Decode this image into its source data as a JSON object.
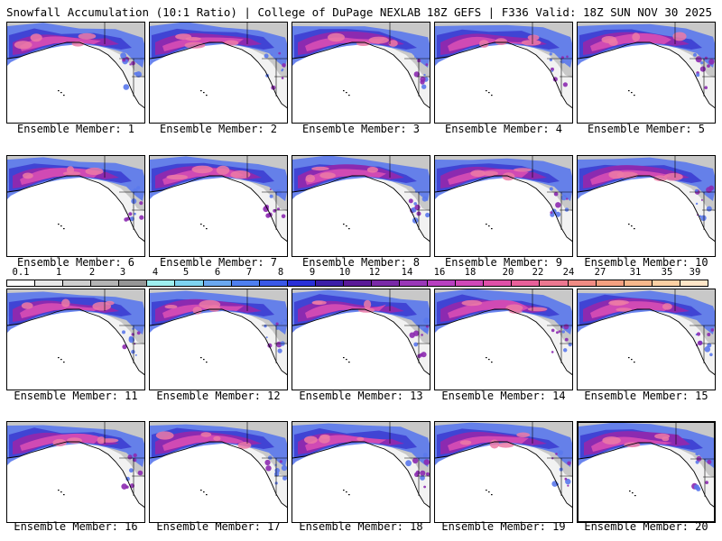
{
  "header": {
    "title": "Snowfall Accumulation (10:1 Ratio) | College of DuPage NEXLAB",
    "run_info": "18Z GEFS | F336 Valid: 18Z SUN NOV 30 2025"
  },
  "panels": [
    {
      "label": "Ensemble Member: 1"
    },
    {
      "label": "Ensemble Member: 2"
    },
    {
      "label": "Ensemble Member: 3"
    },
    {
      "label": "Ensemble Member: 4"
    },
    {
      "label": "Ensemble Member: 5"
    },
    {
      "label": "Ensemble Member: 6"
    },
    {
      "label": "Ensemble Member: 7"
    },
    {
      "label": "Ensemble Member: 8"
    },
    {
      "label": "Ensemble Member: 9"
    },
    {
      "label": "Ensemble Member: 10"
    },
    {
      "label": "Ensemble Member: 11"
    },
    {
      "label": "Ensemble Member: 12"
    },
    {
      "label": "Ensemble Member: 13"
    },
    {
      "label": "Ensemble Member: 14"
    },
    {
      "label": "Ensemble Member: 15"
    },
    {
      "label": "Ensemble Member: 16"
    },
    {
      "label": "Ensemble Member: 17"
    },
    {
      "label": "Ensemble Member: 18"
    },
    {
      "label": "Ensemble Member: 19"
    },
    {
      "label": "Ensemble Member: 20"
    }
  ],
  "colorbar": {
    "labels": [
      "0.1",
      "1",
      "2",
      "3",
      "4",
      "5",
      "6",
      "7",
      "8",
      "9",
      "10",
      "12",
      "14",
      "16",
      "18",
      "20",
      "22",
      "24",
      "27",
      "31",
      "35",
      "39"
    ],
    "colors": [
      "#ffffff",
      "#e8e8e8",
      "#cfcfcf",
      "#b4b4b4",
      "#969696",
      "#9ef0f0",
      "#7ed4f0",
      "#6aa8f0",
      "#4f80f0",
      "#3a58e8",
      "#2a30d8",
      "#3c1ea8",
      "#5a1a98",
      "#7a2aa8",
      "#9a38b8",
      "#b840c0",
      "#d048b8",
      "#e050a8",
      "#e8609a",
      "#ec7890",
      "#f08c84",
      "#f4a080",
      "#f8b88c",
      "#fcd0a4",
      "#ffe6c8"
    ]
  },
  "colors": {
    "ocean": "#ffffff",
    "land": "#f2f2f2",
    "snow_light": "#c8c8c8",
    "snow_blue": "#5a78ec",
    "snow_deep_blue": "#3a3ad0",
    "snow_purple": "#8c2ab0",
    "snow_magenta": "#d04ab4",
    "snow_pink": "#ec7aa6",
    "coast": "#000000"
  }
}
